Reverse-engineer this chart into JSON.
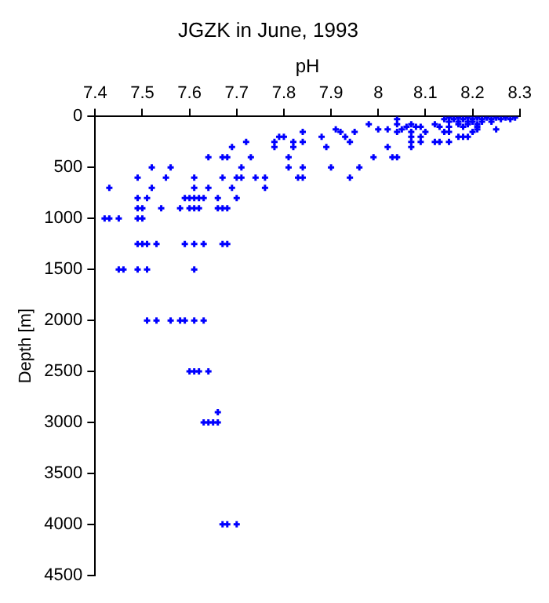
{
  "chart_data": {
    "type": "scatter",
    "title": "JGZK in June, 1993",
    "xlabel": "pH",
    "ylabel": "Depth [m]",
    "x": [
      8.15,
      8.17,
      8.19,
      8.21,
      8.23,
      8.25,
      8.27,
      8.29,
      8.04,
      8.14,
      8.16,
      8.18,
      8.2,
      8.22,
      8.24,
      8.26,
      8.28,
      8.15,
      8.17,
      8.19,
      8.2,
      8.22,
      8.24,
      7.98,
      8.04,
      8.07,
      8.12,
      8.17,
      8.19,
      8.21,
      8.06,
      8.08,
      8.09,
      8.13,
      8.15,
      8.18,
      8.21,
      7.91,
      8.0,
      8.02,
      8.05,
      8.21,
      8.25,
      7.84,
      7.92,
      7.95,
      8.04,
      8.07,
      8.1,
      8.14,
      8.15,
      8.2,
      7.79,
      7.8,
      7.88,
      7.93,
      8.07,
      8.09,
      8.17,
      8.18,
      8.19,
      7.72,
      7.78,
      7.82,
      7.84,
      7.94,
      8.07,
      8.09,
      8.12,
      8.13,
      8.15,
      7.69,
      7.78,
      7.82,
      7.89,
      8.02,
      8.07,
      7.64,
      7.67,
      7.68,
      7.73,
      7.81,
      7.99,
      8.03,
      8.04,
      7.52,
      7.56,
      7.71,
      7.81,
      7.84,
      7.9,
      7.96,
      7.49,
      7.55,
      7.61,
      7.67,
      7.7,
      7.71,
      7.74,
      7.76,
      7.83,
      7.84,
      7.94,
      7.43,
      7.52,
      7.61,
      7.64,
      7.69,
      7.76,
      7.49,
      7.51,
      7.59,
      7.6,
      7.61,
      7.62,
      7.63,
      7.66,
      7.7,
      7.49,
      7.5,
      7.54,
      7.58,
      7.6,
      7.61,
      7.62,
      7.66,
      7.67,
      7.68,
      7.42,
      7.43,
      7.45,
      7.49,
      7.5,
      7.49,
      7.5,
      7.51,
      7.53,
      7.59,
      7.61,
      7.63,
      7.67,
      7.68,
      7.45,
      7.46,
      7.49,
      7.51,
      7.61,
      7.51,
      7.53,
      7.56,
      7.58,
      7.59,
      7.61,
      7.63,
      7.6,
      7.61,
      7.62,
      7.64,
      7.66,
      7.63,
      7.64,
      7.65,
      7.66,
      7.67,
      7.68,
      7.7
    ],
    "series": [
      {
        "color": "#0000ff",
        "values": [
          10,
          10,
          10,
          10,
          10,
          10,
          10,
          10,
          25,
          25,
          25,
          25,
          25,
          25,
          25,
          25,
          25,
          50,
          50,
          50,
          50,
          50,
          50,
          75,
          75,
          75,
          75,
          75,
          75,
          75,
          100,
          100,
          100,
          100,
          100,
          100,
          100,
          125,
          125,
          125,
          125,
          125,
          125,
          150,
          150,
          150,
          150,
          150,
          150,
          150,
          150,
          150,
          200,
          200,
          200,
          200,
          200,
          200,
          200,
          200,
          200,
          250,
          250,
          250,
          250,
          250,
          250,
          250,
          250,
          250,
          250,
          300,
          300,
          300,
          300,
          300,
          300,
          400,
          400,
          400,
          400,
          400,
          400,
          400,
          400,
          500,
          500,
          500,
          500,
          500,
          500,
          500,
          600,
          600,
          600,
          600,
          600,
          600,
          600,
          600,
          600,
          600,
          600,
          700,
          700,
          700,
          700,
          700,
          700,
          800,
          800,
          800,
          800,
          800,
          800,
          800,
          800,
          800,
          900,
          900,
          900,
          900,
          900,
          900,
          900,
          900,
          900,
          900,
          1000,
          1000,
          1000,
          1000,
          1000,
          1250,
          1250,
          1250,
          1250,
          1250,
          1250,
          1250,
          1250,
          1250,
          1500,
          1500,
          1500,
          1500,
          1500,
          2000,
          2000,
          2000,
          2000,
          2000,
          2000,
          2000,
          2500,
          2500,
          2500,
          2500,
          2900,
          3000,
          3000,
          3000,
          3000,
          4000,
          4000,
          4000
        ]
      }
    ],
    "xlim": [
      7.4,
      8.3
    ],
    "xticks": [
      7.4,
      7.5,
      7.6,
      7.7,
      7.8,
      7.9,
      8,
      8.1,
      8.2,
      8.3
    ],
    "ylim": [
      4500,
      0
    ],
    "yticks": [
      0,
      500,
      1000,
      1500,
      2000,
      2500,
      3000,
      3500,
      4000,
      4500
    ],
    "marker": "cross",
    "grid": false,
    "legend": false
  }
}
